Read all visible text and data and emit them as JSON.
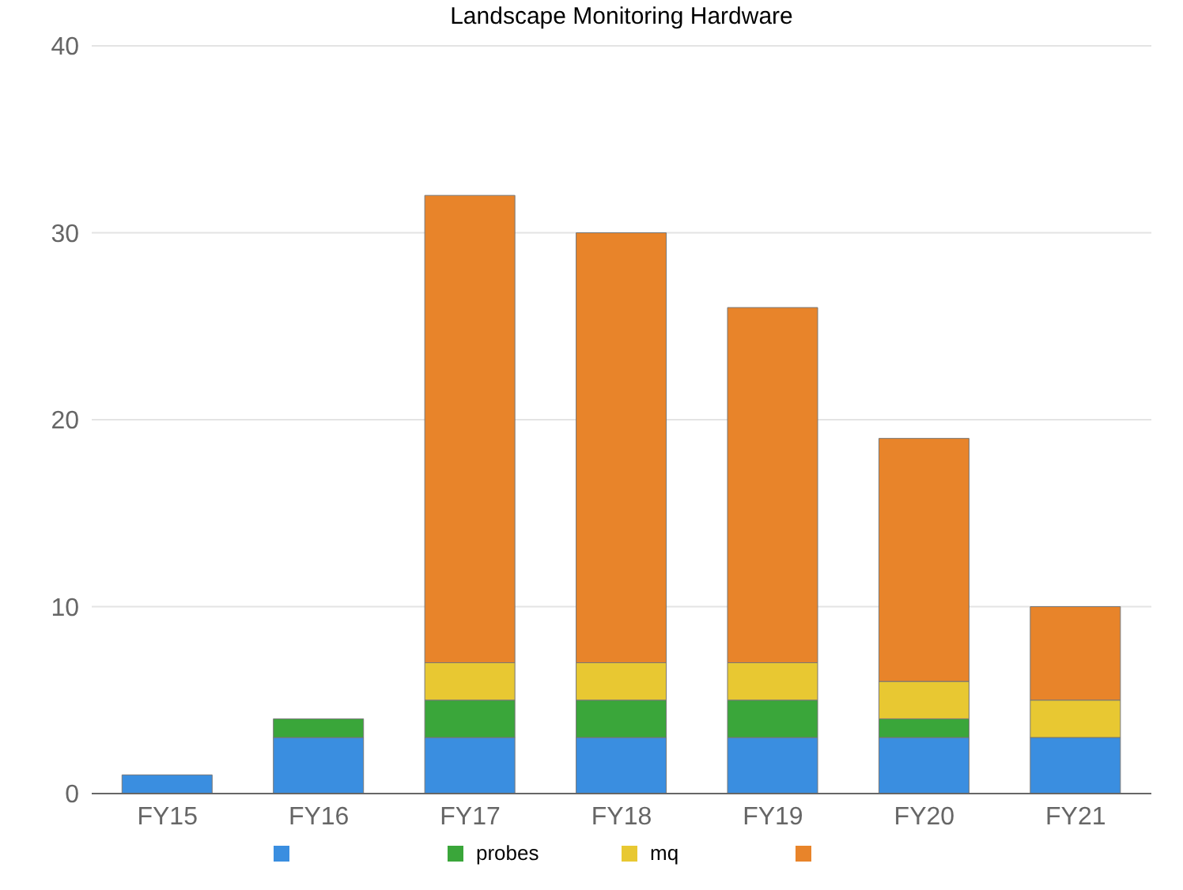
{
  "chart_data": {
    "type": "bar",
    "title": "Landscape Monitoring Hardware",
    "categories": [
      "FY15",
      "FY16",
      "FY17",
      "FY18",
      "FY19",
      "FY20",
      "FY21"
    ],
    "stacked": true,
    "series": [
      {
        "color": "#3a8ee0",
        "values": [
          1,
          3,
          3,
          3,
          3,
          3,
          3
        ]
      },
      {
        "name": "probes",
        "color": "#3aa63a",
        "values": [
          0,
          1,
          2,
          2,
          2,
          1,
          0
        ]
      },
      {
        "name": "mq",
        "color": "#e8c832",
        "values": [
          0,
          0,
          2,
          2,
          2,
          2,
          2
        ]
      },
      {
        "color": "#e8842a",
        "values": [
          0,
          0,
          25,
          23,
          19,
          13,
          5
        ]
      }
    ],
    "ylim": [
      0,
      40
    ],
    "yticks": [
      0,
      10,
      20,
      30,
      40
    ],
    "grid": "y",
    "legend": "bottom"
  }
}
